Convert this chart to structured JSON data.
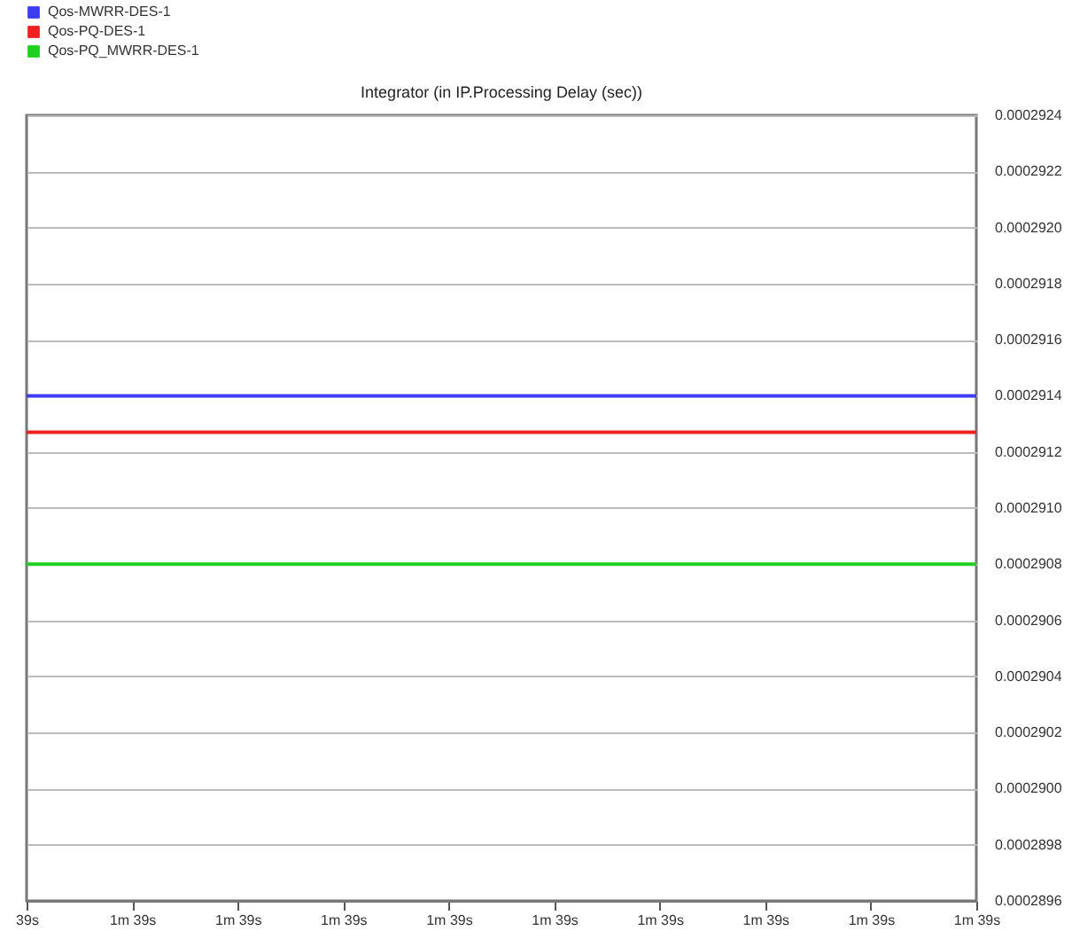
{
  "chart_data": {
    "type": "line",
    "title": "Integrator (in IP.Processing Delay (sec))",
    "categories": [
      "39s",
      "1m 39s",
      "1m 39s",
      "1m 39s",
      "1m 39s",
      "1m 39s",
      "1m 39s",
      "1m 39s",
      "1m 39s",
      "1m 39s"
    ],
    "series": [
      {
        "name": "Qos-MWRR-DES-1",
        "color": "#3c3cf0",
        "values": [
          0.0002914,
          0.0002914,
          0.0002914,
          0.0002914,
          0.0002914,
          0.0002914,
          0.0002914,
          0.0002914,
          0.0002914,
          0.0002914
        ]
      },
      {
        "name": "Qos-PQ-DES-1",
        "color": "#f02020",
        "values": [
          0.00029127,
          0.00029127,
          0.00029127,
          0.00029127,
          0.00029127,
          0.00029127,
          0.00029127,
          0.00029127,
          0.00029127,
          0.00029127
        ]
      },
      {
        "name": "Qos-PQ_MWRR-DES-1",
        "color": "#20d020",
        "values": [
          0.0002908,
          0.0002908,
          0.0002908,
          0.0002908,
          0.0002908,
          0.0002908,
          0.0002908,
          0.0002908,
          0.0002908,
          0.0002908
        ]
      }
    ],
    "ylim": [
      0.0002896,
      0.0002924
    ],
    "yticks": [
      {
        "value": 0.0002896,
        "label": "0.0002896"
      },
      {
        "value": 0.0002898,
        "label": "0.0002898"
      },
      {
        "value": 0.00029,
        "label": "0.0002900"
      },
      {
        "value": 0.0002902,
        "label": "0.0002902"
      },
      {
        "value": 0.0002904,
        "label": "0.0002904"
      },
      {
        "value": 0.0002906,
        "label": "0.0002906"
      },
      {
        "value": 0.0002908,
        "label": "0.0002908"
      },
      {
        "value": 0.000291,
        "label": "0.0002910"
      },
      {
        "value": 0.0002912,
        "label": "0.0002912"
      },
      {
        "value": 0.0002914,
        "label": "0.0002914"
      },
      {
        "value": 0.0002916,
        "label": "0.0002916"
      },
      {
        "value": 0.0002918,
        "label": "0.0002918"
      },
      {
        "value": 0.000292,
        "label": "0.0002920"
      },
      {
        "value": 0.0002922,
        "label": "0.0002922"
      },
      {
        "value": 0.0002924,
        "label": "0.0002924"
      }
    ],
    "grid": "y",
    "legend": "top left",
    "marker": "none",
    "line_style": "solid"
  }
}
